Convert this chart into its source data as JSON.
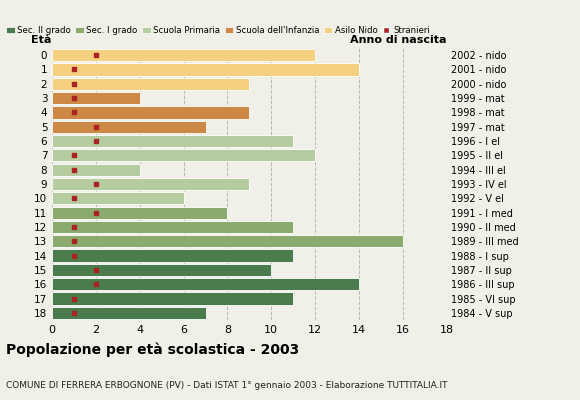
{
  "ages": [
    18,
    17,
    16,
    15,
    14,
    13,
    12,
    11,
    10,
    9,
    8,
    7,
    6,
    5,
    4,
    3,
    2,
    1,
    0
  ],
  "bar_values": [
    7,
    11,
    14,
    10,
    11,
    16,
    11,
    8,
    6,
    9,
    4,
    12,
    11,
    7,
    9,
    4,
    9,
    14,
    12
  ],
  "stranieri_values": [
    1,
    1,
    2,
    2,
    1,
    1,
    1,
    2,
    1,
    2,
    1,
    1,
    2,
    2,
    1,
    1,
    1,
    1,
    2
  ],
  "anno_nascita": [
    "1984 - V sup",
    "1985 - VI sup",
    "1986 - III sup",
    "1987 - II sup",
    "1988 - I sup",
    "1989 - III med",
    "1990 - II med",
    "1991 - I med",
    "1992 - V el",
    "1993 - IV el",
    "1994 - III el",
    "1995 - II el",
    "1996 - I el",
    "1997 - mat",
    "1998 - mat",
    "1999 - mat",
    "2000 - nido",
    "2001 - nido",
    "2002 - nido"
  ],
  "bar_colors": [
    "#4a7c4e",
    "#4a7c4e",
    "#4a7c4e",
    "#4a7c4e",
    "#4a7c4e",
    "#8aaa6e",
    "#8aaa6e",
    "#8aaa6e",
    "#b5cca0",
    "#b5cca0",
    "#b5cca0",
    "#b5cca0",
    "#b5cca0",
    "#cc8844",
    "#cc8844",
    "#cc8844",
    "#f5d080",
    "#f5d080",
    "#f5d080"
  ],
  "legend_labels": [
    "Sec. II grado",
    "Sec. I grado",
    "Scuola Primaria",
    "Scuola dell'Infanzia",
    "Asilo Nido",
    "Stranieri"
  ],
  "legend_colors": [
    "#4a7c4e",
    "#8aaa6e",
    "#b5cca0",
    "#cc8844",
    "#f5d080",
    "#aa2222"
  ],
  "stranieri_color": "#aa2222",
  "title": "Popolazione per età scolastica - 2003",
  "subtitle": "COMUNE DI FERRERA ERBOGNONE (PV) - Dati ISTAT 1° gennaio 2003 - Elaborazione TUTTITALIA.IT",
  "xlabel_eta": "Età",
  "xlabel_anno": "Anno di nascita",
  "xlim": [
    0,
    18
  ],
  "background_color": "#f0f0e8"
}
